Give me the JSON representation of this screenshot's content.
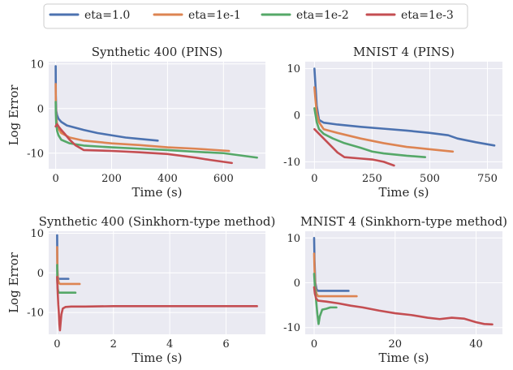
{
  "legend": {
    "placement": "top-center",
    "entries": [
      {
        "label": "eta=1.0",
        "color": "#4c72b0"
      },
      {
        "label": "eta=1e-1",
        "color": "#dd8452"
      },
      {
        "label": "eta=1e-2",
        "color": "#55a868"
      },
      {
        "label": "eta=1e-3",
        "color": "#c44e52"
      }
    ]
  },
  "chart_data": [
    {
      "type": "line",
      "title": "Synthetic 400 (PINS)",
      "xlabel": "Time (s)",
      "ylabel": "Log Error",
      "xlim": [
        -25,
        750
      ],
      "ylim": [
        -13.5,
        10.5
      ],
      "xticks": [
        0,
        200,
        400,
        600
      ],
      "yticks": [
        10,
        0,
        -10
      ],
      "grid": true,
      "series": [
        {
          "name": "eta=1.0",
          "color": "#4c72b0",
          "x": [
            0,
            0.5,
            2,
            5,
            10,
            20,
            40,
            70,
            100,
            150,
            200,
            250,
            300,
            365
          ],
          "y": [
            9.5,
            3,
            -0.5,
            -1.5,
            -2.3,
            -3,
            -3.8,
            -4.3,
            -4.8,
            -5.5,
            -6,
            -6.5,
            -6.8,
            -7.2
          ]
        },
        {
          "name": "eta=1e-1",
          "color": "#dd8452",
          "x": [
            0,
            0.5,
            2,
            5,
            10,
            20,
            50,
            100,
            200,
            300,
            400,
            500,
            620
          ],
          "y": [
            5.5,
            1,
            -2,
            -3.5,
            -4.5,
            -5.5,
            -6.5,
            -7.2,
            -7.8,
            -8.2,
            -8.7,
            -9,
            -9.5
          ]
        },
        {
          "name": "eta=1e-2",
          "color": "#55a868",
          "x": [
            0,
            0.5,
            2,
            5,
            10,
            20,
            50,
            100,
            200,
            300,
            400,
            500,
            600,
            720
          ],
          "y": [
            1.5,
            -1,
            -3.5,
            -5,
            -6,
            -7,
            -7.8,
            -8.3,
            -8.7,
            -9,
            -9.3,
            -9.7,
            -10,
            -11
          ]
        },
        {
          "name": "eta=1e-3",
          "color": "#c44e52",
          "x": [
            0,
            5,
            10,
            20,
            30,
            50,
            70,
            100,
            200,
            300,
            400,
            500,
            550,
            630
          ],
          "y": [
            -4,
            -3.5,
            -4,
            -4.8,
            -5.5,
            -7,
            -8.2,
            -9.3,
            -9.5,
            -9.8,
            -10.2,
            -11,
            -11.5,
            -12.2
          ]
        }
      ]
    },
    {
      "type": "line",
      "title": "MNIST 4 (PINS)",
      "xlabel": "Time (s)",
      "ylabel": "",
      "xlim": [
        -40,
        815
      ],
      "ylim": [
        -11.5,
        11.5
      ],
      "xticks": [
        0,
        250,
        500,
        750
      ],
      "yticks": [
        10,
        0,
        -10
      ],
      "grid": true,
      "series": [
        {
          "name": "eta=1.0",
          "color": "#4c72b0",
          "x": [
            0,
            5,
            10,
            20,
            40,
            100,
            200,
            300,
            400,
            500,
            580,
            620,
            700,
            780
          ],
          "y": [
            10,
            6,
            2,
            -1,
            -1.6,
            -2,
            -2.5,
            -2.9,
            -3.3,
            -3.8,
            -4.3,
            -5,
            -5.8,
            -6.5
          ]
        },
        {
          "name": "eta=1e-1",
          "color": "#dd8452",
          "x": [
            0,
            5,
            10,
            20,
            40,
            100,
            200,
            300,
            400,
            500,
            600
          ],
          "y": [
            6,
            3,
            0.5,
            -1.5,
            -3,
            -3.8,
            -5,
            -6,
            -6.8,
            -7.3,
            -7.8
          ]
        },
        {
          "name": "eta=1e-2",
          "color": "#55a868",
          "x": [
            0,
            5,
            10,
            20,
            40,
            80,
            130,
            200,
            250,
            300,
            400,
            480
          ],
          "y": [
            1.5,
            0,
            -1.5,
            -3,
            -4,
            -5,
            -6,
            -7,
            -7.8,
            -8.2,
            -8.7,
            -9
          ]
        },
        {
          "name": "eta=1e-3",
          "color": "#c44e52",
          "x": [
            0,
            20,
            50,
            80,
            100,
            130,
            200,
            250,
            300,
            345
          ],
          "y": [
            -3,
            -4,
            -5.5,
            -7,
            -8,
            -9,
            -9.3,
            -9.5,
            -10,
            -10.8
          ]
        }
      ]
    },
    {
      "type": "line",
      "title": "Synthetic 400 (Sinkhorn-type method)",
      "xlabel": "Time (s)",
      "ylabel": "Log Error",
      "xlim": [
        -0.3,
        7.4
      ],
      "ylim": [
        -15.5,
        10.5
      ],
      "xticks": [
        0,
        2,
        4,
        6
      ],
      "yticks": [
        10,
        0,
        -10
      ],
      "grid": true,
      "series": [
        {
          "name": "eta=1.0",
          "color": "#4c72b0",
          "x": [
            0,
            0.005,
            0.01,
            0.02,
            0.05,
            0.1,
            0.4
          ],
          "y": [
            9.5,
            4,
            1,
            -1,
            -1.5,
            -1.5,
            -1.5
          ]
        },
        {
          "name": "eta=1e-1",
          "color": "#dd8452",
          "x": [
            0,
            0.005,
            0.01,
            0.03,
            0.06,
            0.1,
            0.3,
            0.8
          ],
          "y": [
            6.5,
            3,
            0.5,
            -1.5,
            -2.5,
            -2.8,
            -2.8,
            -2.8
          ]
        },
        {
          "name": "eta=1e-2",
          "color": "#55a868",
          "x": [
            0,
            0.005,
            0.02,
            0.05,
            0.1,
            0.3,
            0.65
          ],
          "y": [
            2,
            -2,
            -4,
            -5,
            -5,
            -5,
            -5
          ]
        },
        {
          "name": "eta=1e-3",
          "color": "#c44e52",
          "x": [
            0,
            0.02,
            0.04,
            0.06,
            0.08,
            0.1,
            0.15,
            0.2,
            0.3,
            0.5,
            1,
            2,
            3,
            4,
            5,
            6,
            7.1
          ],
          "y": [
            -1,
            -5,
            -8,
            -10,
            -13,
            -14.5,
            -10.5,
            -9,
            -8.6,
            -8.5,
            -8.5,
            -8.4,
            -8.4,
            -8.4,
            -8.4,
            -8.4,
            -8.4
          ]
        }
      ]
    },
    {
      "type": "line",
      "title": "MNIST 4 (Sinkhorn-type method)",
      "xlabel": "Time (s)",
      "ylabel": "",
      "xlim": [
        -2.2,
        46.5
      ],
      "ylim": [
        -11.5,
        11.5
      ],
      "xticks": [
        0,
        20,
        40
      ],
      "yticks": [
        10,
        0,
        -10
      ],
      "grid": true,
      "series": [
        {
          "name": "eta=1.0",
          "color": "#4c72b0",
          "x": [
            0,
            0.1,
            0.3,
            0.6,
            1,
            2,
            4,
            6,
            8.5
          ],
          "y": [
            10,
            5,
            0,
            -1.5,
            -1.8,
            -1.8,
            -1.8,
            -1.8,
            -1.8
          ]
        },
        {
          "name": "eta=1e-1",
          "color": "#dd8452",
          "x": [
            0,
            0.1,
            0.3,
            0.6,
            1,
            2,
            4,
            6,
            8.5,
            10.5
          ],
          "y": [
            6.5,
            3,
            -1,
            -2.5,
            -3,
            -3,
            -3,
            -3,
            -3,
            -3
          ]
        },
        {
          "name": "eta=1e-2",
          "color": "#55a868",
          "x": [
            0,
            0.2,
            0.5,
            0.8,
            1.1,
            1.4,
            2,
            3,
            4,
            5.5
          ],
          "y": [
            2,
            -1,
            -4,
            -7,
            -9.2,
            -7.5,
            -6,
            -5.8,
            -5.5,
            -5.5
          ]
        },
        {
          "name": "eta=1e-3",
          "color": "#c44e52",
          "x": [
            0,
            0.2,
            0.5,
            1,
            3,
            6,
            9,
            12,
            16,
            20,
            24,
            28,
            31,
            34,
            37,
            40,
            42,
            44
          ],
          "y": [
            -1,
            -2.5,
            -3.5,
            -4,
            -4.2,
            -4.6,
            -5.1,
            -5.5,
            -6.2,
            -6.8,
            -7.2,
            -7.8,
            -8.1,
            -7.8,
            -8,
            -8.8,
            -9.2,
            -9.3
          ]
        }
      ]
    }
  ]
}
